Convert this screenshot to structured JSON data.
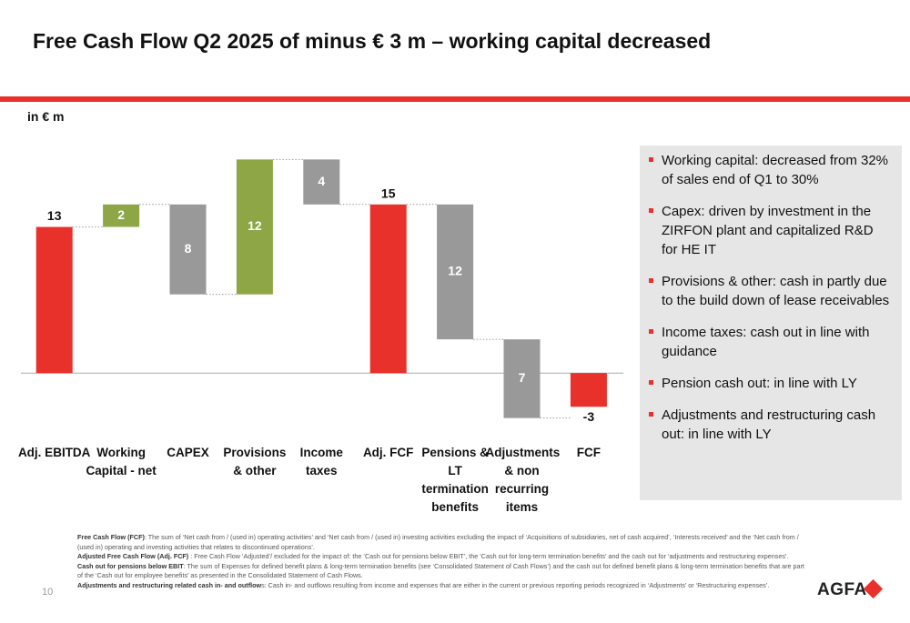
{
  "title": "Free Cash Flow Q2 2025 of minus € 3 m – working capital decreased",
  "chart_data": {
    "type": "waterfall",
    "unit_label": "in € m",
    "categories": [
      "Adj. EBITDA",
      "Working Capital - net",
      "CAPEX",
      "Provisions & other",
      "Income taxes",
      "Adj. FCF",
      "Pensions & LT termination benefits",
      "Adjustments & non recurring items",
      "FCF"
    ],
    "values": [
      13,
      2,
      -8,
      12,
      -4,
      15,
      -12,
      -7,
      -3
    ],
    "value_labels": [
      "13",
      "2",
      "8",
      "12",
      "4",
      "15",
      "12",
      "7",
      "-3"
    ],
    "is_total": [
      true,
      false,
      false,
      false,
      false,
      true,
      false,
      false,
      true
    ],
    "colors": [
      "#e8312a",
      "#8ea646",
      "#999999",
      "#8ea646",
      "#999999",
      "#e8312a",
      "#999999",
      "#999999",
      "#e8312a"
    ],
    "ylim": [
      -5,
      20
    ]
  },
  "bullets": [
    "Working capital: decreased from 32% of sales end of Q1 to 30%",
    "Capex: driven by investment in the ZIRFON plant and capitalized R&D for HE IT",
    "Provisions & other: cash in partly due to the build down of lease receivables",
    "Income taxes: cash out in line with guidance",
    "Pension cash out: in line with LY",
    "Adjustments and restructuring cash out: in line with LY"
  ],
  "footnotes": [
    {
      "term": "Free Cash Flow (FCF)",
      "text": ": The sum of ‘Net cash from / (used in) operating activities’ and ‘Net cash from / (used in) investing activities excluding the impact of ‘Acquisitions of subsidiaries, net of cash acquired’, ‘Interests received’ and the ‘Net cash from / (used in) operating and investing activities that relates to discontinued operations’."
    },
    {
      "term": "Adjusted Free Cash Flow (Adj. FCF)",
      "text": " : Free Cash Flow ‘Adjusted’/ excluded for the impact of: the ‘Cash out for pensions below EBIT’, the ‘Cash out for long-term termination benefits’ and the cash out for ‘adjustments and restructuring expenses’."
    },
    {
      "term": "Cash out for pensions below EBIT",
      "text": ": The sum of Expenses for defined benefit plans & long-term termination benefits (see ‘Consolidated Statement of Cash Flows’) and the cash out for defined benefit plans & long-term termination benefits that are part of the ‘Cash out for employee benefits’ as presented in the Consolidated Statement of Cash Flows."
    },
    {
      "term": "Adjustments and restructuring related cash in- and outflow",
      "text": "s: Cash in- and outflows resulting from income and expenses that are either in the current or previous reporting periods recognized in ‘Adjustments’ or ‘Restructuring expenses’."
    }
  ],
  "page_number": "10",
  "logo": "AGFA"
}
